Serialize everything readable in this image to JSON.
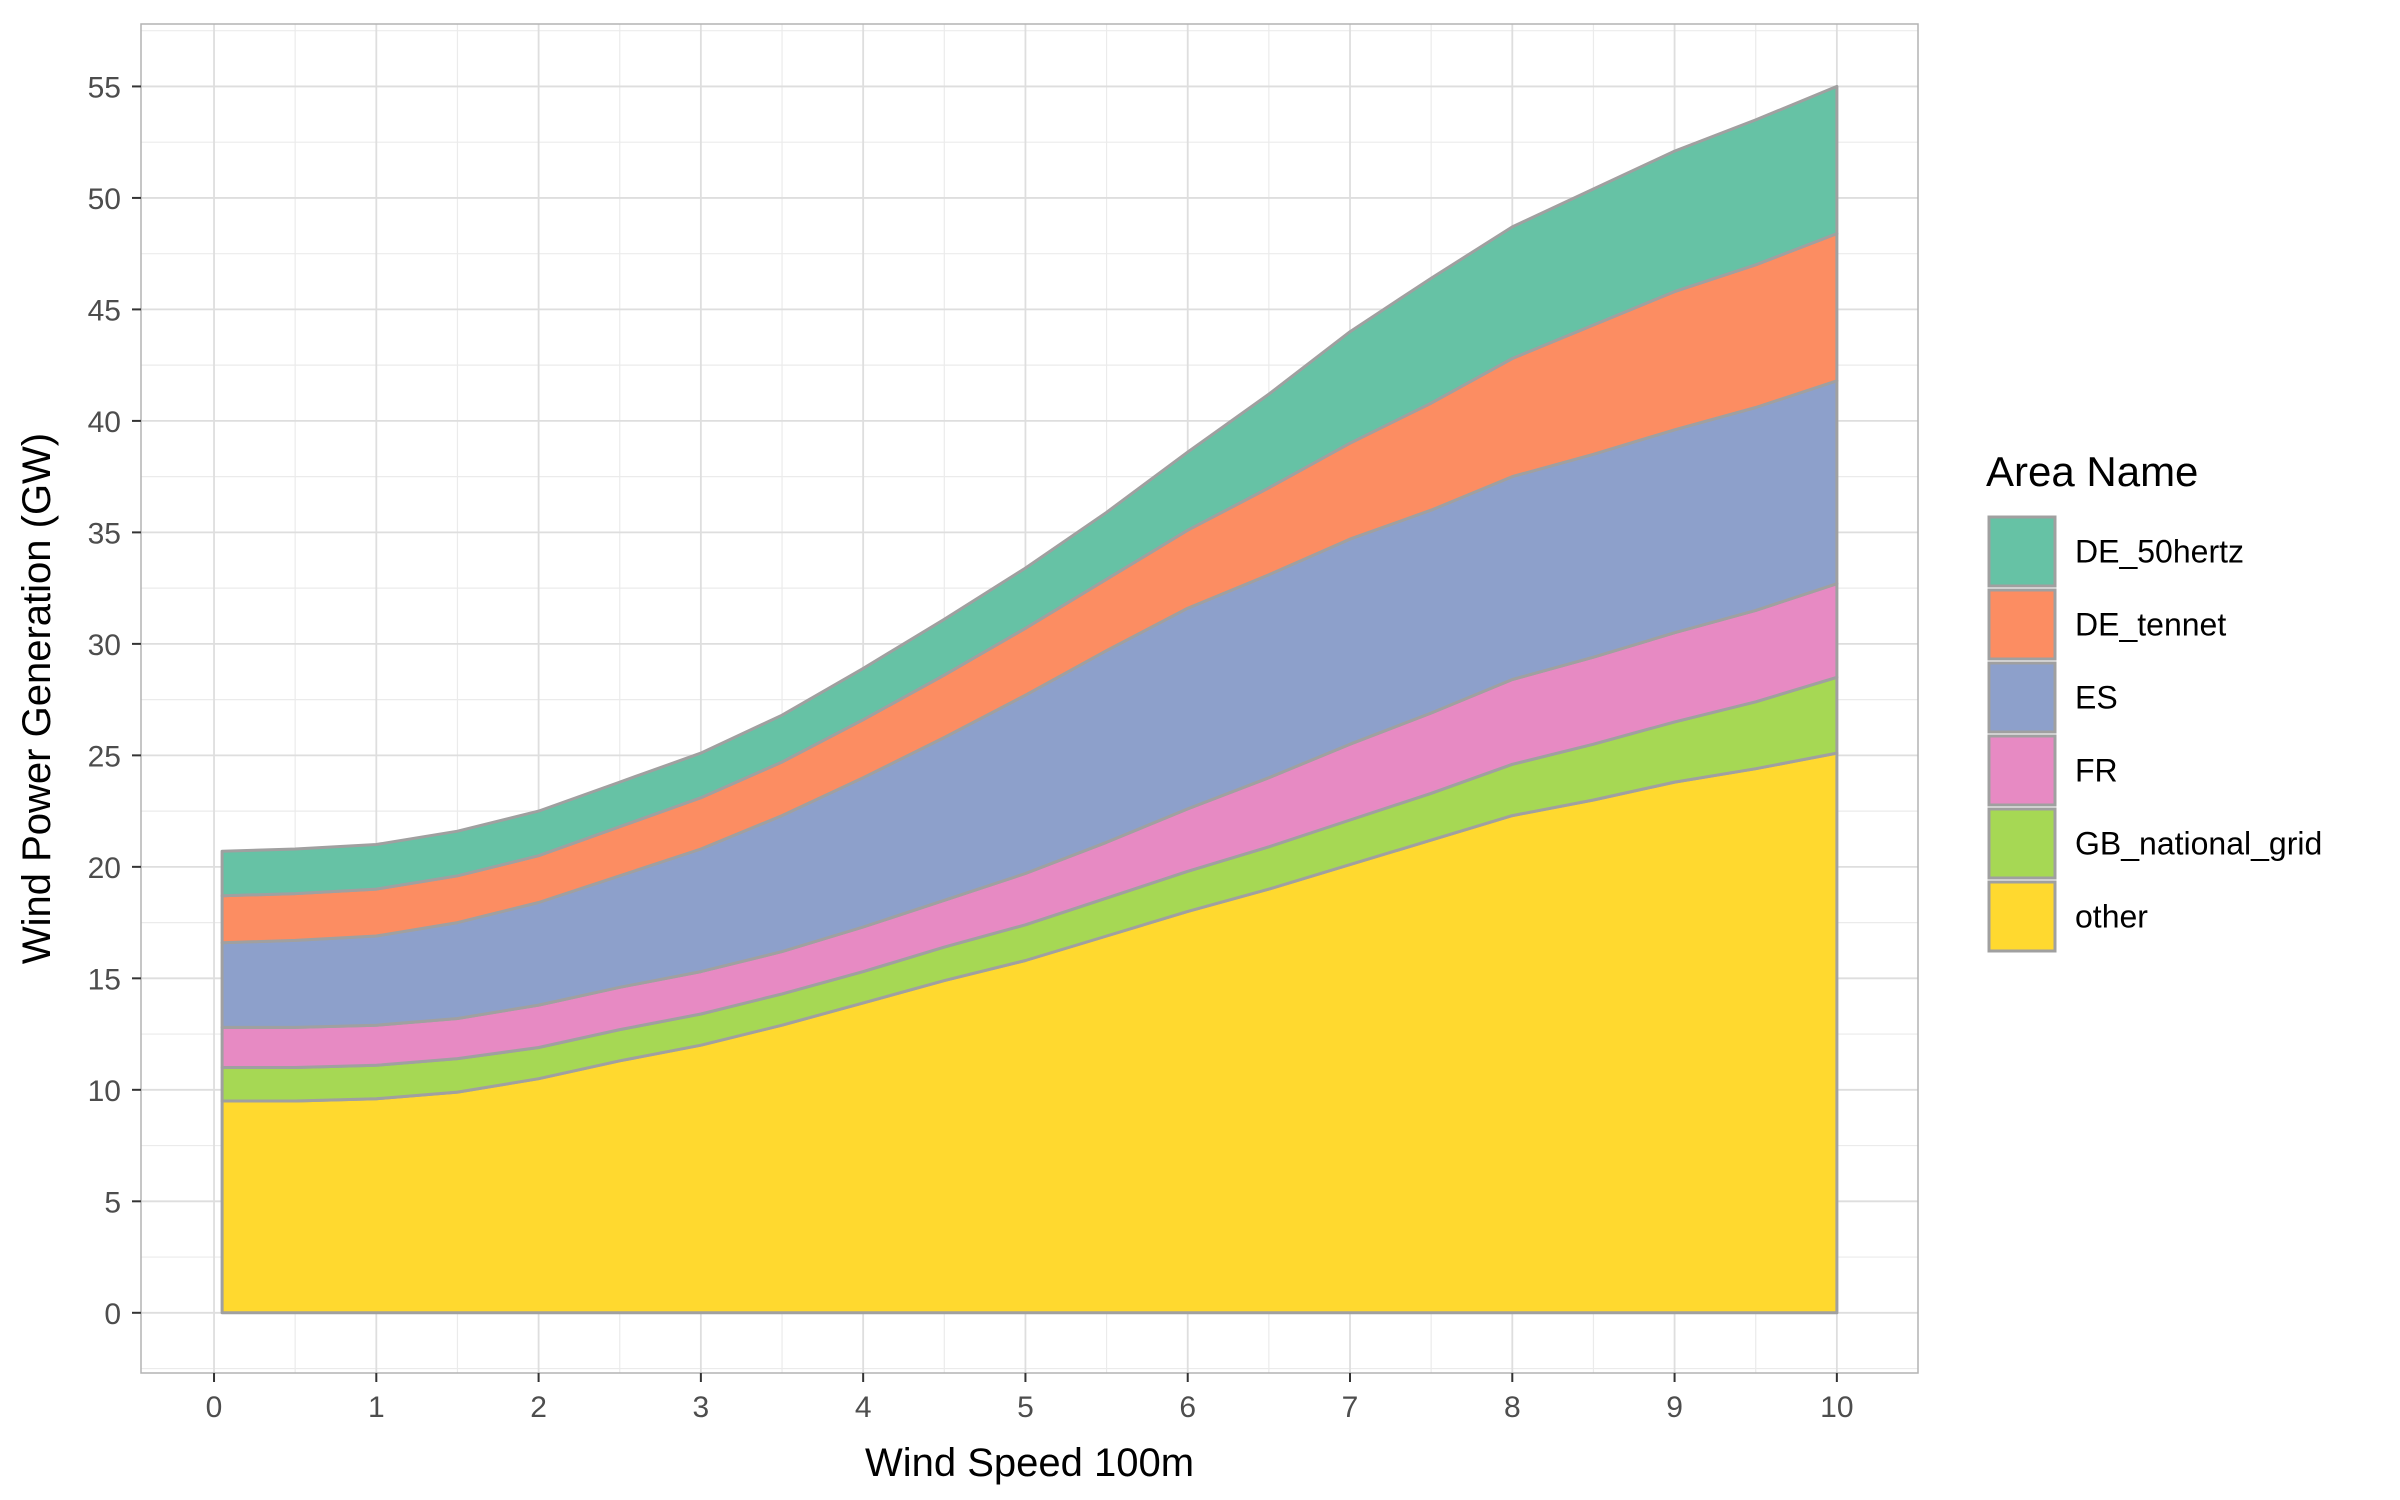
{
  "chart_data": {
    "type": "area",
    "stacked": true,
    "xlabel": "Wind Speed 100m",
    "ylabel": "Wind Power Generation (GW)",
    "xlim": [
      -0.45,
      10.5
    ],
    "ylim": [
      -2.7,
      57.8
    ],
    "x_ticks": [
      0,
      1,
      2,
      3,
      4,
      5,
      6,
      7,
      8,
      9,
      10
    ],
    "y_ticks": [
      0,
      5,
      10,
      15,
      20,
      25,
      30,
      35,
      40,
      45,
      50,
      55
    ],
    "grid": true,
    "legend": {
      "title": "Area Name",
      "position": "right"
    },
    "x": [
      0.05,
      0.5,
      1,
      1.5,
      2,
      2.5,
      3,
      3.5,
      4,
      4.5,
      5,
      5.5,
      6,
      6.5,
      7,
      7.5,
      8,
      8.5,
      9,
      9.5,
      10
    ],
    "series": [
      {
        "name": "other",
        "color": "#FFD92F",
        "values": [
          9.5,
          9.5,
          9.6,
          9.9,
          10.5,
          11.3,
          12.0,
          12.9,
          13.9,
          14.9,
          15.8,
          16.9,
          18.0,
          19.0,
          20.1,
          21.2,
          22.3,
          23.0,
          23.8,
          24.4,
          25.1
        ]
      },
      {
        "name": "GB_national_grid",
        "color": "#A6D854",
        "values": [
          1.5,
          1.5,
          1.5,
          1.5,
          1.4,
          1.4,
          1.4,
          1.4,
          1.4,
          1.5,
          1.6,
          1.7,
          1.8,
          1.9,
          2.0,
          2.1,
          2.3,
          2.5,
          2.7,
          3.0,
          3.4
        ]
      },
      {
        "name": "FR",
        "color": "#E78AC3",
        "values": [
          1.8,
          1.8,
          1.8,
          1.8,
          1.9,
          1.9,
          1.9,
          1.9,
          2.0,
          2.1,
          2.3,
          2.5,
          2.8,
          3.1,
          3.4,
          3.6,
          3.8,
          3.9,
          4.0,
          4.1,
          4.2
        ]
      },
      {
        "name": "ES",
        "color": "#8DA0CB",
        "values": [
          3.8,
          3.9,
          4.0,
          4.3,
          4.6,
          5.0,
          5.5,
          6.1,
          6.7,
          7.3,
          8.0,
          8.6,
          9.0,
          9.1,
          9.2,
          9.1,
          9.1,
          9.1,
          9.1,
          9.1,
          9.1
        ]
      },
      {
        "name": "DE_tennet",
        "color": "#FC8D62",
        "values": [
          2.1,
          2.1,
          2.1,
          2.1,
          2.1,
          2.2,
          2.3,
          2.4,
          2.6,
          2.8,
          3.0,
          3.2,
          3.5,
          3.9,
          4.3,
          4.8,
          5.3,
          5.8,
          6.2,
          6.4,
          6.6
        ]
      },
      {
        "name": "DE_50hertz",
        "color": "#66C2A5",
        "values": [
          2.0,
          2.0,
          2.0,
          2.0,
          2.0,
          2.0,
          2.0,
          2.1,
          2.3,
          2.5,
          2.7,
          3.0,
          3.5,
          4.2,
          5.0,
          5.6,
          5.9,
          6.1,
          6.3,
          6.5,
          6.6
        ]
      }
    ],
    "legend_order": [
      "DE_50hertz",
      "DE_tennet",
      "ES",
      "FR",
      "GB_national_grid",
      "other"
    ]
  }
}
